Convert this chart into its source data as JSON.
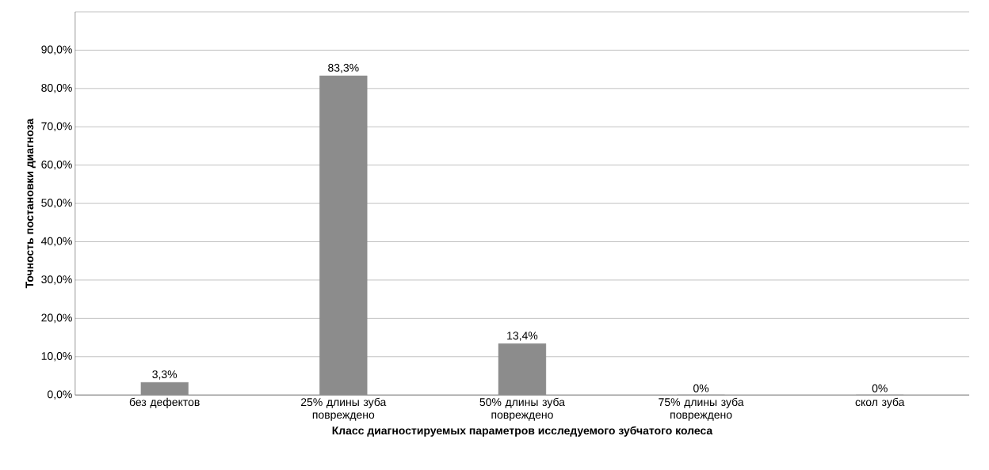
{
  "chart_data": {
    "type": "bar",
    "xlabel": "Класс диагностируемых параметров исследуемого зубчатого колеса",
    "ylabel": "Точность постановки диагноза",
    "categories": [
      "без дефектов",
      "25% длины зуба повреждено",
      "50% длины зуба повреждено",
      "75% длины зуба повреждено",
      "скол зуба"
    ],
    "values": [
      3.3,
      83.3,
      13.4,
      0,
      0
    ],
    "value_labels": [
      "3,3%",
      "83,3%",
      "13,4%",
      "0%",
      "0%"
    ],
    "color": "#8c8c8c",
    "ylim": [
      0,
      100
    ],
    "yticks": [
      {
        "value": 0,
        "label": "0,0%"
      },
      {
        "value": 10,
        "label": "10,0%"
      },
      {
        "value": 20,
        "label": "20,0%"
      },
      {
        "value": 30,
        "label": "30,0%"
      },
      {
        "value": 40,
        "label": "40,0%"
      },
      {
        "value": 50,
        "label": "50,0%"
      },
      {
        "value": 60,
        "label": "60,0%"
      },
      {
        "value": 70,
        "label": "70,0%"
      },
      {
        "value": 80,
        "label": "80,0%"
      },
      {
        "value": 90,
        "label": "90,0%"
      },
      {
        "value": 100,
        "label": null
      }
    ],
    "grid": "y"
  }
}
